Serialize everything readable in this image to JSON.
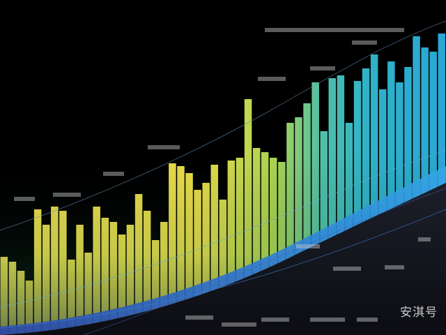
{
  "image": {
    "description_kind": "stylized abstract bar chart artwork on black background",
    "palette": {
      "background": "#000000",
      "bar_yellow": "#e9dd4e",
      "bar_green": "#8ccf4a",
      "bar_cyan": "#2fb3c7",
      "band_blue": "#2c6fd1",
      "band_navy": "#2a3a86",
      "label_grey": "#c9c9c9"
    }
  },
  "watermark": {
    "text": "安淇号"
  }
}
